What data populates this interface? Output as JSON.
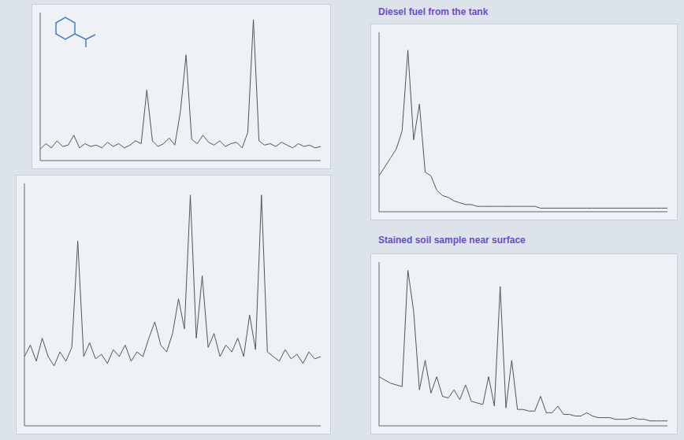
{
  "chart_data": [
    {
      "type": "line",
      "tick_labels": false,
      "grid": false,
      "color": "#555555",
      "xlim": [
        0,
        100
      ],
      "ylim": [
        0,
        105
      ],
      "x": [
        0,
        2,
        4,
        6,
        8,
        10,
        12,
        14,
        16,
        18,
        20,
        22,
        24,
        26,
        28,
        30,
        32,
        34,
        36,
        38,
        40,
        42,
        44,
        46,
        48,
        50,
        52,
        54,
        56,
        58,
        60,
        62,
        64,
        66,
        68,
        70,
        72,
        74,
        76,
        78,
        80,
        82,
        84,
        86,
        88,
        90,
        92,
        94,
        96,
        98,
        100
      ],
      "values": [
        8,
        12,
        9,
        14,
        10,
        11,
        18,
        9,
        12,
        10,
        11,
        9,
        13,
        10,
        12,
        9,
        11,
        14,
        12,
        50,
        14,
        10,
        12,
        16,
        11,
        35,
        75,
        15,
        12,
        18,
        13,
        11,
        14,
        10,
        12,
        13,
        9,
        20,
        100,
        14,
        11,
        12,
        10,
        13,
        11,
        9,
        12,
        10,
        11,
        9,
        10
      ]
    },
    {
      "type": "line",
      "tick_labels": false,
      "grid": false,
      "color": "#555555",
      "xlim": [
        0,
        100
      ],
      "ylim": [
        0,
        105
      ],
      "x": [
        0,
        2,
        4,
        6,
        8,
        10,
        12,
        14,
        16,
        18,
        20,
        22,
        24,
        26,
        28,
        30,
        32,
        34,
        36,
        38,
        40,
        42,
        44,
        46,
        48,
        50,
        52,
        54,
        56,
        58,
        60,
        62,
        64,
        66,
        68,
        70,
        72,
        74,
        76,
        78,
        80,
        82,
        84,
        86,
        88,
        90,
        92,
        94,
        96,
        98,
        100
      ],
      "values": [
        30,
        35,
        28,
        38,
        30,
        26,
        32,
        28,
        34,
        80,
        30,
        36,
        29,
        31,
        27,
        33,
        30,
        35,
        28,
        32,
        30,
        38,
        45,
        35,
        32,
        40,
        55,
        42,
        100,
        38,
        65,
        34,
        40,
        30,
        35,
        32,
        38,
        30,
        48,
        33,
        100,
        32,
        30,
        28,
        33,
        29,
        31,
        27,
        32,
        29,
        30
      ]
    },
    {
      "type": "line",
      "tick_labels": false,
      "grid": false,
      "color": "#555555",
      "xlim": [
        0,
        100
      ],
      "ylim": [
        0,
        100
      ],
      "title": "Diesel fuel from the tank",
      "x": [
        0,
        2,
        4,
        6,
        8,
        10,
        12,
        14,
        16,
        18,
        20,
        22,
        24,
        26,
        28,
        30,
        32,
        34,
        36,
        38,
        40,
        42,
        44,
        46,
        48,
        50,
        52,
        54,
        56,
        58,
        60,
        62,
        64,
        66,
        68,
        70,
        72,
        74,
        76,
        78,
        80,
        82,
        84,
        86,
        88,
        90,
        92,
        94,
        96,
        98,
        100
      ],
      "values": [
        20,
        25,
        30,
        35,
        45,
        90,
        40,
        60,
        22,
        20,
        12,
        9,
        8,
        6,
        5,
        4,
        4,
        3,
        3,
        3,
        3,
        3,
        3,
        3,
        3,
        3,
        3,
        3,
        2,
        2,
        2,
        2,
        2,
        2,
        2,
        2,
        2,
        2,
        2,
        2,
        2,
        2,
        2,
        2,
        2,
        2,
        2,
        2,
        2,
        2,
        2
      ]
    },
    {
      "type": "line",
      "tick_labels": false,
      "grid": false,
      "color": "#555555",
      "xlim": [
        0,
        100
      ],
      "ylim": [
        0,
        100
      ],
      "title": "Stained soil sample near surface",
      "x": [
        0,
        2,
        4,
        6,
        8,
        10,
        12,
        14,
        16,
        18,
        20,
        22,
        24,
        26,
        28,
        30,
        32,
        34,
        36,
        38,
        40,
        42,
        44,
        46,
        48,
        50,
        52,
        54,
        56,
        58,
        60,
        62,
        64,
        66,
        68,
        70,
        72,
        74,
        76,
        78,
        80,
        82,
        84,
        86,
        88,
        90,
        92,
        94,
        96,
        98,
        100
      ],
      "values": [
        30,
        28,
        26,
        25,
        24,
        95,
        70,
        22,
        40,
        20,
        30,
        18,
        17,
        22,
        16,
        25,
        15,
        14,
        13,
        30,
        12,
        85,
        11,
        40,
        10,
        10,
        9,
        9,
        18,
        8,
        8,
        12,
        7,
        7,
        6,
        6,
        8,
        6,
        5,
        5,
        5,
        4,
        4,
        4,
        5,
        4,
        4,
        3,
        3,
        3,
        3
      ]
    }
  ]
}
